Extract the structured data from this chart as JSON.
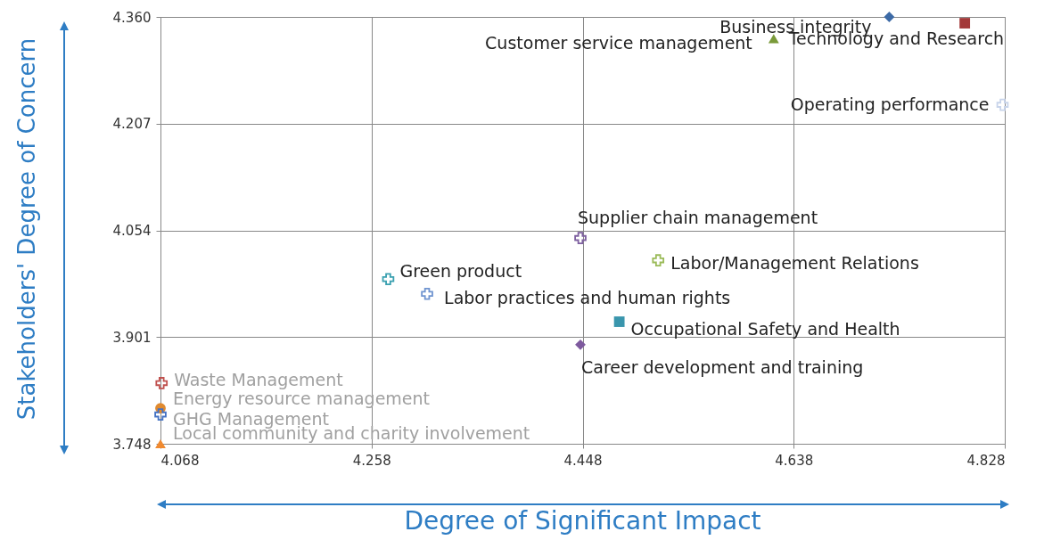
{
  "chart_data": {
    "type": "scatter",
    "xlabel": "Degree of Significant Impact",
    "ylabel": "Stakeholders' Degree of Concern",
    "xlim": [
      4.068,
      4.828
    ],
    "ylim": [
      3.748,
      4.36
    ],
    "xticks": [
      4.068,
      4.258,
      4.448,
      4.638,
      4.828
    ],
    "yticks": [
      3.748,
      3.901,
      4.054,
      4.207,
      {
        "value": 4.36,
        "label": "4.360"
      }
    ],
    "grid": true,
    "series": [
      {
        "name": "Business integrity",
        "color": "#3c6aa6",
        "marker": "diamond",
        "x": [
          4.724
        ],
        "values": [
          4.36
        ]
      },
      {
        "name": "Technology and Research",
        "color": "#a33a3a",
        "marker": "square",
        "x": [
          4.792
        ],
        "values": [
          4.351
        ]
      },
      {
        "name": "Customer service management",
        "color": "#7a9a3a",
        "marker": "triangle",
        "x": [
          4.62
        ],
        "values": [
          4.329
        ]
      },
      {
        "name": "Operating performance",
        "color": "#c8d4ea",
        "marker": "cross",
        "x": [
          4.826
        ],
        "values": [
          4.234
        ]
      },
      {
        "name": "Supplier chain management",
        "color": "#7e60a0",
        "marker": "cross",
        "x": [
          4.446
        ],
        "values": [
          4.043
        ]
      },
      {
        "name": "Labor/Management Relations",
        "color": "#9bbb59",
        "marker": "cross",
        "x": [
          4.516
        ],
        "values": [
          4.011
        ]
      },
      {
        "name": "Green product",
        "color": "#3aa0b0",
        "marker": "cross",
        "x": [
          4.273
        ],
        "values": [
          3.984
        ]
      },
      {
        "name": "Labor practices and human rights",
        "color": "#6f94d0",
        "marker": "cross",
        "x": [
          4.308
        ],
        "values": [
          3.963
        ]
      },
      {
        "name": "Occupational Safety and Health",
        "color": "#3a96ad",
        "marker": "square",
        "x": [
          4.481
        ],
        "values": [
          3.923
        ]
      },
      {
        "name": "Career development and training",
        "color": "#7e5a9e",
        "marker": "diamond",
        "x": [
          4.446
        ],
        "values": [
          3.89
        ]
      },
      {
        "name": "Waste Management",
        "color": "#c0504d",
        "marker": "cross",
        "x": [
          4.069
        ],
        "values": [
          3.835
        ]
      },
      {
        "name": "Energy resource management",
        "color": "#e08a30",
        "marker": "circle",
        "x": [
          4.068
        ],
        "values": [
          3.799
        ]
      },
      {
        "name": "GHG Management",
        "color": "#4472c4",
        "marker": "cross",
        "x": [
          4.068
        ],
        "values": [
          3.79
        ]
      },
      {
        "name": "Local community and charity involvement",
        "color": "#f08a30",
        "marker": "triangle",
        "x": [
          4.068
        ],
        "values": [
          3.748
        ]
      }
    ]
  }
}
